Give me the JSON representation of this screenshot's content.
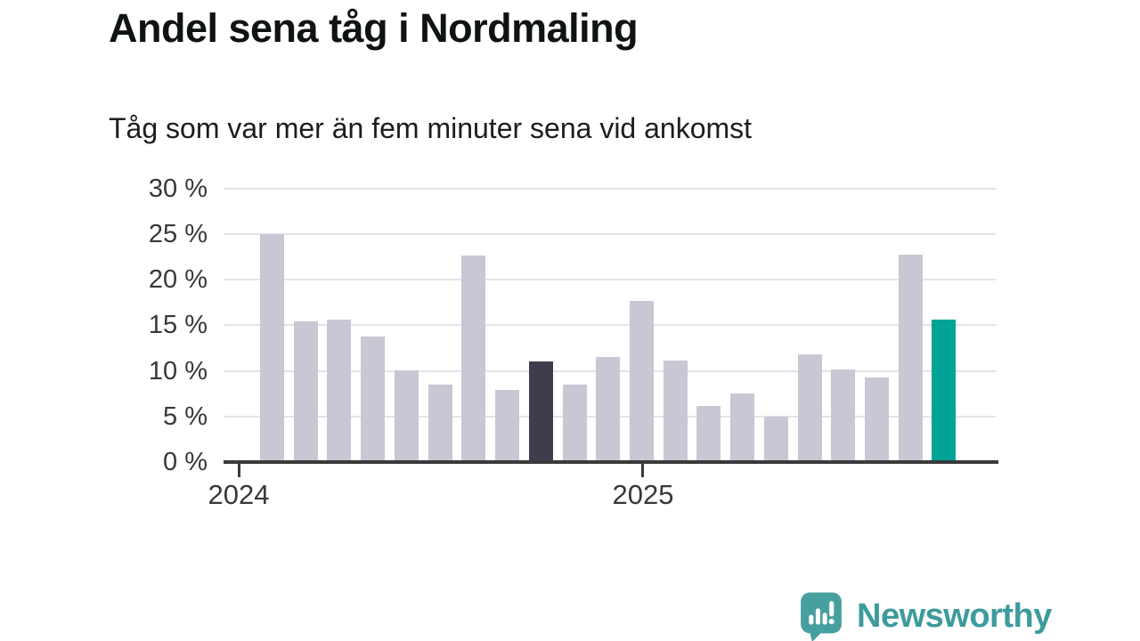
{
  "header": {
    "title": "Andel sena tåg i Nordmaling",
    "subtitle": "Tåg som var mer än fem minuter sena vid ankomst"
  },
  "chart_data": {
    "type": "bar",
    "title": "Andel sena tåg i Nordmaling",
    "subtitle": "Tåg som var mer än fem minuter sena vid ankomst",
    "unit": "%",
    "ylim": [
      0,
      30
    ],
    "grid": true,
    "legend": "none",
    "yticks": [
      0,
      5,
      10,
      15,
      20,
      25,
      30
    ],
    "ytick_labels": [
      "0 %",
      "5 %",
      "10 %",
      "15 %",
      "20 %",
      "25 %",
      "30 %"
    ],
    "xticks": [
      {
        "label": "2024",
        "month_index": 0
      },
      {
        "label": "2025",
        "month_index": 12
      }
    ],
    "values": [
      25.0,
      15.4,
      15.6,
      13.8,
      10.1,
      8.5,
      22.7,
      7.9,
      11.0,
      8.5,
      11.5,
      17.7,
      11.1,
      6.2,
      7.5,
      5.0,
      11.8,
      10.2,
      9.3,
      22.8,
      15.6
    ],
    "highlight": {
      "dark_index": 8,
      "teal_index": 20
    }
  },
  "colors": {
    "bar_default": "#c9c7d3",
    "bar_dark": "#3f3d4d",
    "bar_teal": "#00a396",
    "gridline": "#e5e3e8",
    "axis": "#3a3a3a",
    "brand_teal": "#3d9b9b",
    "logo_teal": "#47a0a0"
  },
  "footer": {
    "brand": "Newsworthy"
  }
}
